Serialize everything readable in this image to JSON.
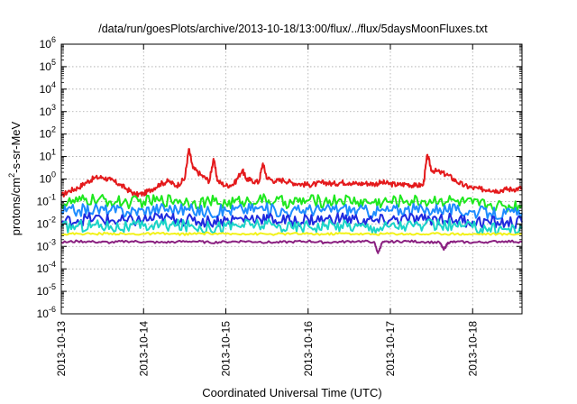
{
  "chart_data": {
    "type": "line",
    "title": "/data/run/goesPlots/archive/2013-10-18/13:00/flux/../flux/5daysMoonFluxes.txt",
    "xlabel": "Coordinated Universal Time (UTC)",
    "ylabel_parts": [
      "protons/cm",
      "2",
      "-s-sr-MeV"
    ],
    "yscale": "log",
    "ylim": [
      1e-06,
      1000000.0
    ],
    "xlim": [
      0,
      5.6
    ],
    "x_unit": "days since 2013-10-13 00:00 UTC",
    "grid": true,
    "y_ticks": [
      {
        "value": 1e-06,
        "base": "10",
        "exp": "-6"
      },
      {
        "value": 1e-05,
        "base": "10",
        "exp": "-5"
      },
      {
        "value": 0.0001,
        "base": "10",
        "exp": "-4"
      },
      {
        "value": 0.001,
        "base": "10",
        "exp": "-3"
      },
      {
        "value": 0.01,
        "base": "10",
        "exp": "-2"
      },
      {
        "value": 0.1,
        "base": "10",
        "exp": "-1"
      },
      {
        "value": 1,
        "base": "10",
        "exp": "0"
      },
      {
        "value": 10,
        "base": "10",
        "exp": "1"
      },
      {
        "value": 100,
        "base": "10",
        "exp": "2"
      },
      {
        "value": 1000,
        "base": "10",
        "exp": "3"
      },
      {
        "value": 10000,
        "base": "10",
        "exp": "4"
      },
      {
        "value": 100000,
        "base": "10",
        "exp": "5"
      },
      {
        "value": 1000000,
        "base": "10",
        "exp": "6"
      }
    ],
    "x_ticks": [
      {
        "value": 0,
        "label": "2013-10-13"
      },
      {
        "value": 1,
        "label": "2013-10-14"
      },
      {
        "value": 2,
        "label": "2013-10-15"
      },
      {
        "value": 3,
        "label": "2013-10-16"
      },
      {
        "value": 4,
        "label": "2013-10-17"
      },
      {
        "value": 5,
        "label": "2013-10-18"
      }
    ],
    "series": [
      {
        "color": "#e41a1c",
        "x": [
          0,
          0.1,
          0.2,
          0.3,
          0.4,
          0.5,
          0.6,
          0.7,
          0.8,
          0.9,
          1.0,
          1.1,
          1.2,
          1.3,
          1.4,
          1.5,
          1.55,
          1.6,
          1.7,
          1.8,
          1.85,
          1.9,
          2.0,
          2.1,
          2.2,
          2.25,
          2.3,
          2.4,
          2.45,
          2.5,
          2.6,
          2.7,
          2.8,
          2.9,
          3.0,
          3.1,
          3.2,
          3.3,
          3.4,
          3.5,
          3.6,
          3.7,
          3.8,
          3.9,
          4.0,
          4.1,
          4.2,
          4.3,
          4.4,
          4.45,
          4.5,
          4.6,
          4.7,
          4.8,
          4.9,
          5.0,
          5.1,
          5.2,
          5.3,
          5.4,
          5.5,
          5.6
        ],
        "values": [
          0.18,
          0.3,
          0.4,
          0.7,
          1.1,
          1.2,
          0.9,
          0.6,
          0.35,
          0.2,
          0.22,
          0.35,
          0.6,
          0.8,
          0.5,
          1.0,
          22,
          3.0,
          1.5,
          0.8,
          8.0,
          0.8,
          0.5,
          0.6,
          2.5,
          1.0,
          0.9,
          0.7,
          5.0,
          1.1,
          0.8,
          0.9,
          0.7,
          0.6,
          0.55,
          0.6,
          0.7,
          0.6,
          0.7,
          0.7,
          0.6,
          0.65,
          0.6,
          0.7,
          0.6,
          0.55,
          0.6,
          0.5,
          0.55,
          12,
          2.5,
          2.0,
          1.5,
          0.8,
          0.5,
          0.4,
          0.35,
          0.35,
          0.3,
          0.35,
          0.35,
          0.4
        ]
      },
      {
        "color": "#1ee81e",
        "x": [
          0,
          0.2,
          0.4,
          0.6,
          0.8,
          1.0,
          1.2,
          1.4,
          1.6,
          1.8,
          2.0,
          2.2,
          2.4,
          2.6,
          2.8,
          3.0,
          3.2,
          3.4,
          3.6,
          3.8,
          4.0,
          4.2,
          4.4,
          4.6,
          4.8,
          5.0,
          5.2,
          5.4,
          5.6
        ],
        "values": [
          0.08,
          0.1,
          0.12,
          0.1,
          0.09,
          0.1,
          0.11,
          0.12,
          0.09,
          0.1,
          0.08,
          0.1,
          0.12,
          0.1,
          0.09,
          0.11,
          0.1,
          0.12,
          0.1,
          0.09,
          0.1,
          0.11,
          0.1,
          0.12,
          0.1,
          0.08,
          0.07,
          0.06,
          0.07
        ]
      },
      {
        "color": "#1e8cff",
        "x": [
          0,
          0.2,
          0.4,
          0.6,
          0.8,
          1.0,
          1.2,
          1.4,
          1.6,
          1.8,
          2.0,
          2.2,
          2.4,
          2.6,
          2.8,
          3.0,
          3.2,
          3.4,
          3.6,
          3.8,
          4.0,
          4.2,
          4.4,
          4.6,
          4.8,
          5.0,
          5.2,
          5.4,
          5.6
        ],
        "values": [
          0.035,
          0.04,
          0.045,
          0.04,
          0.035,
          0.04,
          0.05,
          0.045,
          0.04,
          0.035,
          0.04,
          0.045,
          0.05,
          0.04,
          0.035,
          0.045,
          0.04,
          0.05,
          0.04,
          0.035,
          0.04,
          0.045,
          0.04,
          0.05,
          0.04,
          0.035,
          0.03,
          0.028,
          0.03
        ]
      },
      {
        "color": "#1f2adf",
        "x": [
          0,
          0.2,
          0.4,
          0.6,
          0.8,
          1.0,
          1.2,
          1.4,
          1.6,
          1.8,
          2.0,
          2.2,
          2.4,
          2.6,
          2.8,
          3.0,
          3.2,
          3.4,
          3.6,
          3.8,
          4.0,
          4.2,
          4.4,
          4.6,
          4.8,
          5.0,
          5.2,
          5.4,
          5.6
        ],
        "values": [
          0.012,
          0.015,
          0.018,
          0.014,
          0.013,
          0.015,
          0.018,
          0.016,
          0.014,
          0.013,
          0.015,
          0.017,
          0.019,
          0.015,
          0.013,
          0.016,
          0.015,
          0.018,
          0.015,
          0.013,
          0.015,
          0.017,
          0.015,
          0.018,
          0.015,
          0.013,
          0.012,
          0.011,
          0.012
        ]
      },
      {
        "color": "#1ad4c8",
        "x": [
          0,
          0.2,
          0.4,
          0.6,
          0.8,
          1.0,
          1.2,
          1.4,
          1.6,
          1.8,
          2.0,
          2.2,
          2.4,
          2.6,
          2.8,
          3.0,
          3.2,
          3.4,
          3.6,
          3.8,
          4.0,
          4.2,
          4.4,
          4.6,
          4.8,
          5.0,
          5.2,
          5.4,
          5.6
        ],
        "values": [
          0.007,
          0.008,
          0.009,
          0.008,
          0.007,
          0.008,
          0.009,
          0.0085,
          0.008,
          0.007,
          0.008,
          0.009,
          0.0095,
          0.008,
          0.007,
          0.0085,
          0.008,
          0.009,
          0.008,
          0.007,
          0.008,
          0.009,
          0.008,
          0.009,
          0.008,
          0.007,
          0.0065,
          0.006,
          0.0065
        ]
      },
      {
        "color": "#f2f21a",
        "x": [
          0,
          0.2,
          0.4,
          0.6,
          0.8,
          1.0,
          1.2,
          1.4,
          1.6,
          1.8,
          2.0,
          2.2,
          2.4,
          2.6,
          2.8,
          3.0,
          3.2,
          3.4,
          3.6,
          3.8,
          4.0,
          4.2,
          4.4,
          4.6,
          4.8,
          5.0,
          5.2,
          5.4,
          5.6
        ],
        "values": [
          0.0035,
          0.0037,
          0.0036,
          0.0038,
          0.0035,
          0.0036,
          0.0037,
          0.0035,
          0.0036,
          0.0038,
          0.0035,
          0.0037,
          0.0036,
          0.0035,
          0.0037,
          0.0036,
          0.0035,
          0.0038,
          0.0036,
          0.0035,
          0.0037,
          0.0036,
          0.0035,
          0.0037,
          0.0036,
          0.0035,
          0.0036,
          0.0035,
          0.0036
        ]
      },
      {
        "color": "#8a2080",
        "x": [
          0,
          0.2,
          0.4,
          0.6,
          0.8,
          1.0,
          1.2,
          1.4,
          1.6,
          1.8,
          2.0,
          2.2,
          2.4,
          2.6,
          2.8,
          3.0,
          3.2,
          3.4,
          3.6,
          3.8,
          3.85,
          3.9,
          4.0,
          4.2,
          4.4,
          4.6,
          4.65,
          4.7,
          4.8,
          5.0,
          5.2,
          5.4,
          5.6
        ],
        "values": [
          0.0015,
          0.0017,
          0.0016,
          0.0015,
          0.0017,
          0.0016,
          0.0015,
          0.0016,
          0.0017,
          0.0015,
          0.0016,
          0.0017,
          0.0016,
          0.0015,
          0.0016,
          0.0017,
          0.0015,
          0.0016,
          0.0017,
          0.0016,
          0.0005,
          0.0015,
          0.0016,
          0.0017,
          0.0016,
          0.0015,
          0.0007,
          0.0015,
          0.0016,
          0.0015,
          0.0016,
          0.0017,
          0.0016
        ]
      }
    ]
  }
}
